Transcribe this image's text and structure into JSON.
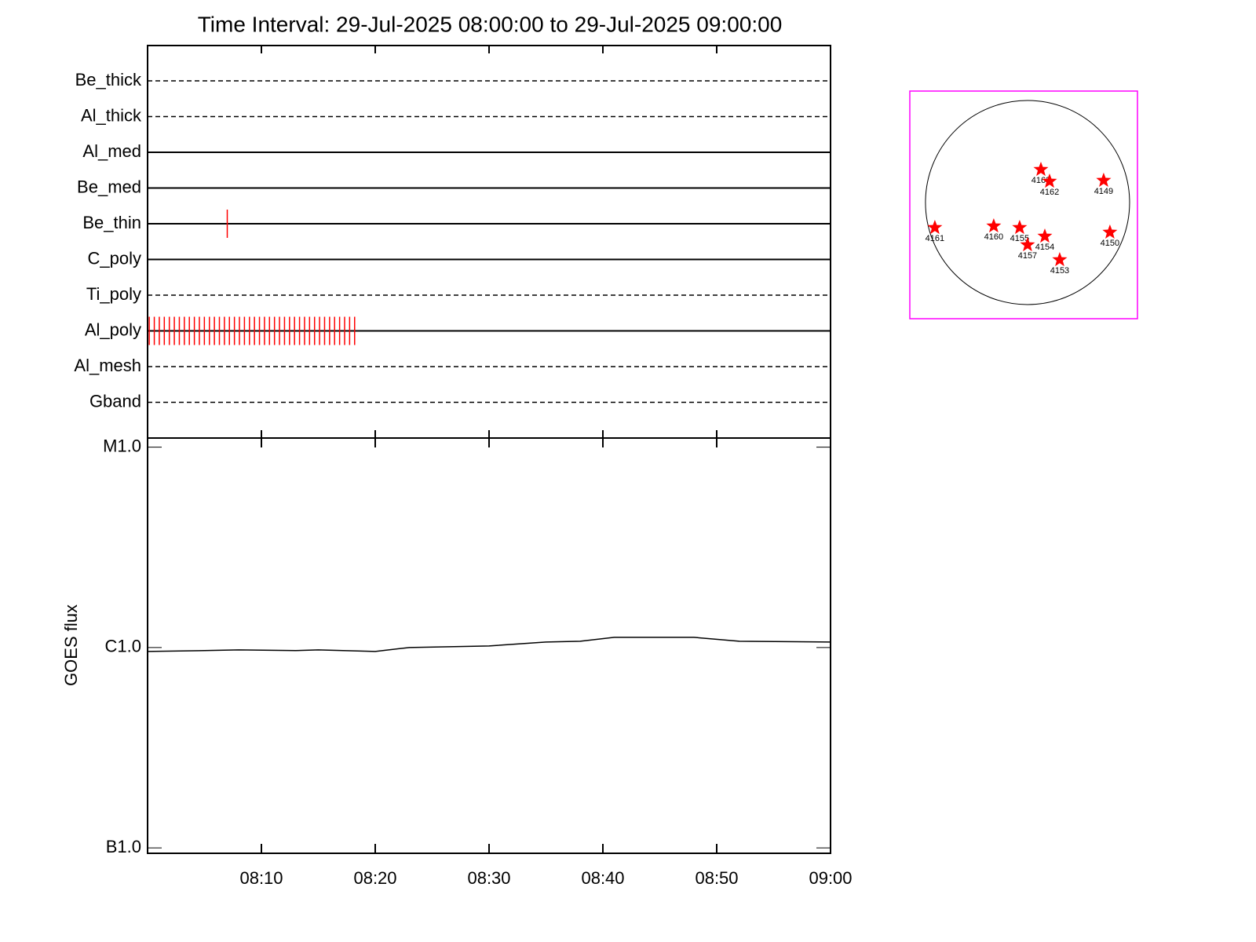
{
  "chart_data": [
    {
      "type": "timeline",
      "title": "Time Interval: 29-Jul-2025 08:00:00 to 29-Jul-2025 09:00:00",
      "categories": [
        "Be_thick",
        "Al_thick",
        "Al_med",
        "Be_med",
        "Be_thin",
        "C_poly",
        "Ti_poly",
        "Al_poly",
        "Al_mesh",
        "Gband"
      ],
      "line_styles": [
        "dashed",
        "dashed",
        "solid",
        "solid",
        "solid",
        "solid",
        "dashed",
        "solid",
        "dashed",
        "dashed"
      ],
      "events": [
        [],
        [],
        [],
        [],
        [
          7.0
        ],
        [],
        [],
        [
          0.15,
          0.59,
          1.03,
          1.47,
          1.91,
          2.35,
          2.79,
          3.23,
          3.67,
          4.11,
          4.55,
          4.99,
          5.43,
          5.87,
          6.31,
          6.75,
          7.19,
          7.63,
          8.07,
          8.51,
          8.95,
          9.39,
          9.83,
          10.27,
          10.71,
          11.15,
          11.59,
          12.03,
          12.47,
          12.91,
          13.35,
          13.79,
          14.23,
          14.67,
          15.11,
          15.55,
          15.99,
          16.43,
          16.87,
          17.31,
          17.75,
          18.19
        ],
        [],
        []
      ],
      "color": "#ff0000",
      "xlim": [
        0,
        60
      ]
    },
    {
      "type": "line",
      "ylabel": "GOES flux",
      "x": [
        0,
        5,
        8,
        13,
        15,
        20,
        23,
        30,
        35,
        38,
        41,
        48,
        52,
        60
      ],
      "values": [
        9.56e-07,
        9.65e-07,
        9.73e-07,
        9.65e-07,
        9.73e-07,
        9.56e-07,
        1e-06,
        1.018e-06,
        1.065e-06,
        1.075e-06,
        1.124e-06,
        1.124e-06,
        1.075e-06,
        1.065e-06
      ],
      "color": "#000000",
      "log_scale": true,
      "xlim": [
        0,
        60
      ],
      "xticks": [
        {
          "value": 10,
          "label": "08:10"
        },
        {
          "value": 20,
          "label": "08:20"
        },
        {
          "value": 30,
          "label": "08:30"
        },
        {
          "value": 40,
          "label": "08:40"
        },
        {
          "value": 50,
          "label": "08:50"
        },
        {
          "value": 60,
          "label": "09:00"
        }
      ],
      "ylim": [
        9.4e-08,
        1.11e-05
      ],
      "yticks": [
        {
          "value": 1e-05,
          "label": "M1.0"
        },
        {
          "value": 1e-06,
          "label": "C1.0"
        },
        {
          "value": 1e-07,
          "label": "B1.0"
        }
      ]
    },
    {
      "type": "scatter",
      "labels": [
        "4163",
        "4162",
        "4149",
        "4161",
        "4160",
        "4155",
        "4154",
        "4157",
        "4153",
        "4150"
      ],
      "x": [
        124,
        204,
        705,
        -858,
        -313,
        -73,
        160,
        0,
        298,
        763
      ],
      "y": [
        305,
        196,
        204,
        -233,
        -218,
        -233,
        -313,
        -393,
        -531,
        -276
      ],
      "xlim": [
        -1090,
        1018
      ],
      "ylim": [
        -1076,
        1032
      ],
      "disk_radius": 945,
      "color": "#ff0000",
      "border_color": "#ff00ff"
    }
  ]
}
